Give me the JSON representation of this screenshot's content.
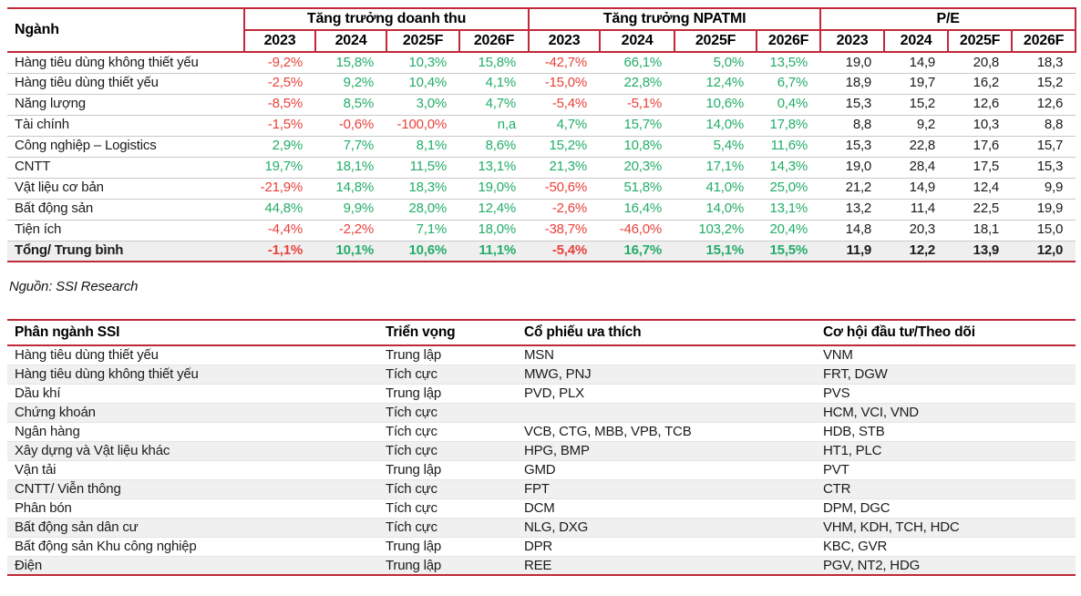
{
  "table1": {
    "row_header": "Ngành",
    "groups": [
      {
        "label": "Tăng trưởng doanh thu",
        "years": [
          "2023",
          "2024",
          "2025F",
          "2026F"
        ]
      },
      {
        "label": "Tăng trưởng NPATMI",
        "years": [
          "2023",
          "2024",
          "2025F",
          "2026F"
        ]
      },
      {
        "label": "P/E",
        "years": [
          "2023",
          "2024",
          "2025F",
          "2026F"
        ]
      }
    ],
    "rows": [
      {
        "sector": "Hàng tiêu dùng không thiết yếu",
        "revenue_growth": [
          "-9,2%",
          "15,8%",
          "10,3%",
          "15,8%"
        ],
        "npatmi_growth": [
          "-42,7%",
          "66,1%",
          "5,0%",
          "13,5%"
        ],
        "pe": [
          "19,0",
          "14,9",
          "20,8",
          "18,3"
        ]
      },
      {
        "sector": "Hàng tiêu dùng thiết yếu",
        "revenue_growth": [
          "-2,5%",
          "9,2%",
          "10,4%",
          "4,1%"
        ],
        "npatmi_growth": [
          "-15,0%",
          "22,8%",
          "12,4%",
          "6,7%"
        ],
        "pe": [
          "18,9",
          "19,7",
          "16,2",
          "15,2"
        ]
      },
      {
        "sector": "Năng lượng",
        "revenue_growth": [
          "-8,5%",
          "8,5%",
          "3,0%",
          "4,7%"
        ],
        "npatmi_growth": [
          "-5,4%",
          "-5,1%",
          "10,6%",
          "0,4%"
        ],
        "pe": [
          "15,3",
          "15,2",
          "12,6",
          "12,6"
        ]
      },
      {
        "sector": "Tài chính",
        "revenue_growth": [
          "-1,5%",
          "-0,6%",
          "-100,0%",
          "n,a"
        ],
        "npatmi_growth": [
          "4,7%",
          "15,7%",
          "14,0%",
          "17,8%"
        ],
        "pe": [
          "8,8",
          "9,2",
          "10,3",
          "8,8"
        ]
      },
      {
        "sector": "Công nghiệp – Logistics",
        "revenue_growth": [
          "2,9%",
          "7,7%",
          "8,1%",
          "8,6%"
        ],
        "npatmi_growth": [
          "15,2%",
          "10,8%",
          "5,4%",
          "11,6%"
        ],
        "pe": [
          "15,3",
          "22,8",
          "17,6",
          "15,7"
        ]
      },
      {
        "sector": "CNTT",
        "revenue_growth": [
          "19,7%",
          "18,1%",
          "11,5%",
          "13,1%"
        ],
        "npatmi_growth": [
          "21,3%",
          "20,3%",
          "17,1%",
          "14,3%"
        ],
        "pe": [
          "19,0",
          "28,4",
          "17,5",
          "15,3"
        ]
      },
      {
        "sector": "Vật liệu cơ bản",
        "revenue_growth": [
          "-21,9%",
          "14,8%",
          "18,3%",
          "19,0%"
        ],
        "npatmi_growth": [
          "-50,6%",
          "51,8%",
          "41,0%",
          "25,0%"
        ],
        "pe": [
          "21,2",
          "14,9",
          "12,4",
          "9,9"
        ]
      },
      {
        "sector": "Bất động sản",
        "revenue_growth": [
          "44,8%",
          "9,9%",
          "28,0%",
          "12,4%"
        ],
        "npatmi_growth": [
          "-2,6%",
          "16,4%",
          "14,0%",
          "13,1%"
        ],
        "pe": [
          "13,2",
          "11,4",
          "22,5",
          "19,9"
        ]
      },
      {
        "sector": "Tiện ích",
        "revenue_growth": [
          "-4,4%",
          "-2,2%",
          "7,1%",
          "18,0%"
        ],
        "npatmi_growth": [
          "-38,7%",
          "-46,0%",
          "103,2%",
          "20,4%"
        ],
        "pe": [
          "14,8",
          "20,3",
          "18,1",
          "15,0"
        ]
      }
    ],
    "total_row": {
      "sector": "Tổng/ Trung bình",
      "revenue_growth": [
        "-1,1%",
        "10,1%",
        "10,6%",
        "11,1%"
      ],
      "npatmi_growth": [
        "-5,4%",
        "16,7%",
        "15,1%",
        "15,5%"
      ],
      "pe": [
        "11,9",
        "12,2",
        "13,9",
        "12,0"
      ]
    }
  },
  "source_note": "Nguồn: SSI Research",
  "table2": {
    "headers": [
      "Phân ngành SSI",
      "Triển vọng",
      "Cổ phiếu ưa thích",
      "Cơ hội đầu tư/Theo dõi"
    ],
    "rows": [
      {
        "sector": "Hàng tiêu dùng thiết yếu",
        "outlook": "Trung lập",
        "preferred": "MSN",
        "watch": "VNM"
      },
      {
        "sector": "Hàng tiêu dùng không thiết yếu",
        "outlook": "Tích cực",
        "preferred": "MWG, PNJ",
        "watch": "FRT, DGW"
      },
      {
        "sector": "Dầu khí",
        "outlook": "Trung lập",
        "preferred": "PVD, PLX",
        "watch": "PVS"
      },
      {
        "sector": "Chứng khoán",
        "outlook": "Tích cực",
        "preferred": "",
        "watch": "HCM, VCI, VND"
      },
      {
        "sector": "Ngân hàng",
        "outlook": "Tích cực",
        "preferred": "VCB, CTG, MBB, VPB, TCB",
        "watch": "HDB, STB"
      },
      {
        "sector": "Xây dựng và Vật liệu khác",
        "outlook": "Tích cực",
        "preferred": "HPG, BMP",
        "watch": "HT1, PLC"
      },
      {
        "sector": "Vận tải",
        "outlook": "Trung lập",
        "preferred": "GMD",
        "watch": "PVT"
      },
      {
        "sector": "CNTT/ Viễn thông",
        "outlook": "Tích cực",
        "preferred": "FPT",
        "watch": "CTR"
      },
      {
        "sector": "Phân bón",
        "outlook": "Tích cực",
        "preferred": "DCM",
        "watch": "DPM, DGC"
      },
      {
        "sector": "Bất động sản dân cư",
        "outlook": "Tích cực",
        "preferred": "NLG, DXG",
        "watch": "VHM, KDH, TCH, HDC"
      },
      {
        "sector": "Bất động sản Khu công nghiệp",
        "outlook": "Trung lập",
        "preferred": "DPR",
        "watch": "KBC, GVR"
      },
      {
        "sector": "Điện",
        "outlook": "Trung lập",
        "preferred": "REE",
        "watch": "PGV, NT2, HDG"
      }
    ]
  },
  "colors": {
    "positive": "#23ad68",
    "negative": "#e8423b",
    "border_red": "#c1293a",
    "total_row_bg": "#efefef",
    "alt_row_bg": "#f0f0f0"
  }
}
